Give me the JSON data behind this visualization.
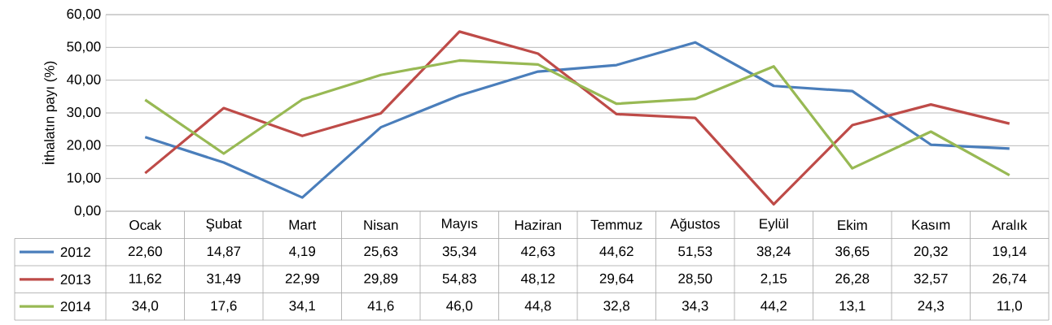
{
  "chart_data": {
    "type": "line",
    "ylabel": "İthalatın payı (%)",
    "categories": [
      "Ocak",
      "Şubat",
      "Mart",
      "Nisan",
      "Mayıs",
      "Haziran",
      "Temmuz",
      "Ağustos",
      "Eylül",
      "Ekim",
      "Kasım",
      "Aralık"
    ],
    "series": [
      {
        "name": "2012",
        "color": "#4a7ebb",
        "values": [
          22.6,
          14.87,
          4.19,
          25.63,
          35.34,
          42.63,
          44.62,
          51.53,
          38.24,
          36.65,
          20.32,
          19.14
        ],
        "value_labels": [
          "22,60",
          "14,87",
          "4,19",
          "25,63",
          "35,34",
          "42,63",
          "44,62",
          "51,53",
          "38,24",
          "36,65",
          "20,32",
          "19,14"
        ]
      },
      {
        "name": "2013",
        "color": "#be4b48",
        "values": [
          11.62,
          31.49,
          22.99,
          29.89,
          54.83,
          48.12,
          29.64,
          28.5,
          2.15,
          26.28,
          32.57,
          26.74
        ],
        "value_labels": [
          "11,62",
          "31,49",
          "22,99",
          "29,89",
          "54,83",
          "48,12",
          "29,64",
          "28,50",
          "2,15",
          "26,28",
          "32,57",
          "26,74"
        ]
      },
      {
        "name": "2014",
        "color": "#98b954",
        "values": [
          34.0,
          17.6,
          34.1,
          41.6,
          46.0,
          44.8,
          32.8,
          34.3,
          44.2,
          13.1,
          24.3,
          11.0
        ],
        "value_labels": [
          "34,0",
          "17,6",
          "34,1",
          "41,6",
          "46,0",
          "44,8",
          "32,8",
          "34,3",
          "44,2",
          "13,1",
          "24,3",
          "11,0"
        ]
      }
    ],
    "ylim": [
      0,
      60
    ],
    "yticks": [
      {
        "value": 0,
        "label": "0,00"
      },
      {
        "value": 10,
        "label": "10,00"
      },
      {
        "value": 20,
        "label": "20,00"
      },
      {
        "value": 30,
        "label": "30,00"
      },
      {
        "value": 40,
        "label": "40,00"
      },
      {
        "value": 50,
        "label": "50,00"
      },
      {
        "value": 60,
        "label": "60,00"
      }
    ],
    "grid": "y",
    "legend": "bottom",
    "marker": "none",
    "line_style": "solid"
  }
}
